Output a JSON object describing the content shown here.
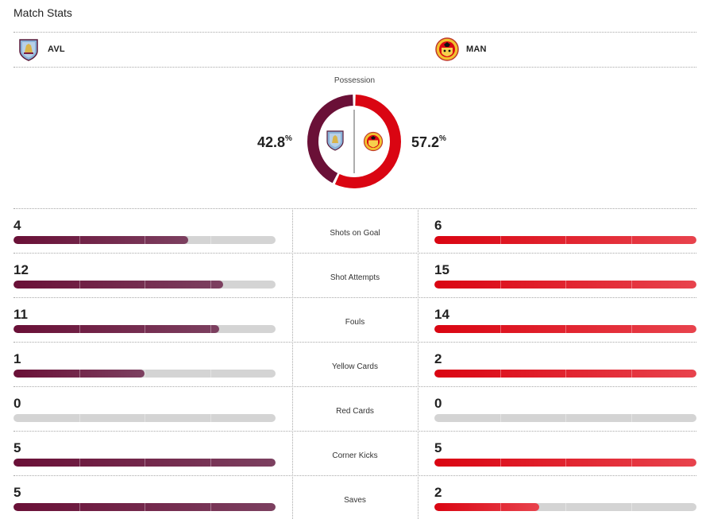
{
  "header": {
    "title": "Match Stats"
  },
  "teams": {
    "home": {
      "abbr": "AVL",
      "color": "#6a1037",
      "crest_icon": "aston-villa-crest-icon"
    },
    "away": {
      "abbr": "MAN",
      "color": "#da0512",
      "crest_icon": "manchester-united-crest-icon"
    }
  },
  "possession": {
    "label": "Possession",
    "home_value": "42.8",
    "away_value": "57.2",
    "unit": "%"
  },
  "stats": [
    {
      "label": "Shots on Goal",
      "home": "4",
      "away": "6",
      "home_fill": 0.667,
      "away_fill": 1.0
    },
    {
      "label": "Shot Attempts",
      "home": "12",
      "away": "15",
      "home_fill": 0.8,
      "away_fill": 1.0
    },
    {
      "label": "Fouls",
      "home": "11",
      "away": "14",
      "home_fill": 0.786,
      "away_fill": 1.0
    },
    {
      "label": "Yellow Cards",
      "home": "1",
      "away": "2",
      "home_fill": 0.5,
      "away_fill": 1.0
    },
    {
      "label": "Red Cards",
      "home": "0",
      "away": "0",
      "home_fill": 0,
      "away_fill": 0
    },
    {
      "label": "Corner Kicks",
      "home": "5",
      "away": "5",
      "home_fill": 1.0,
      "away_fill": 1.0
    },
    {
      "label": "Saves",
      "home": "5",
      "away": "2",
      "home_fill": 1.0,
      "away_fill": 0.4
    }
  ]
}
